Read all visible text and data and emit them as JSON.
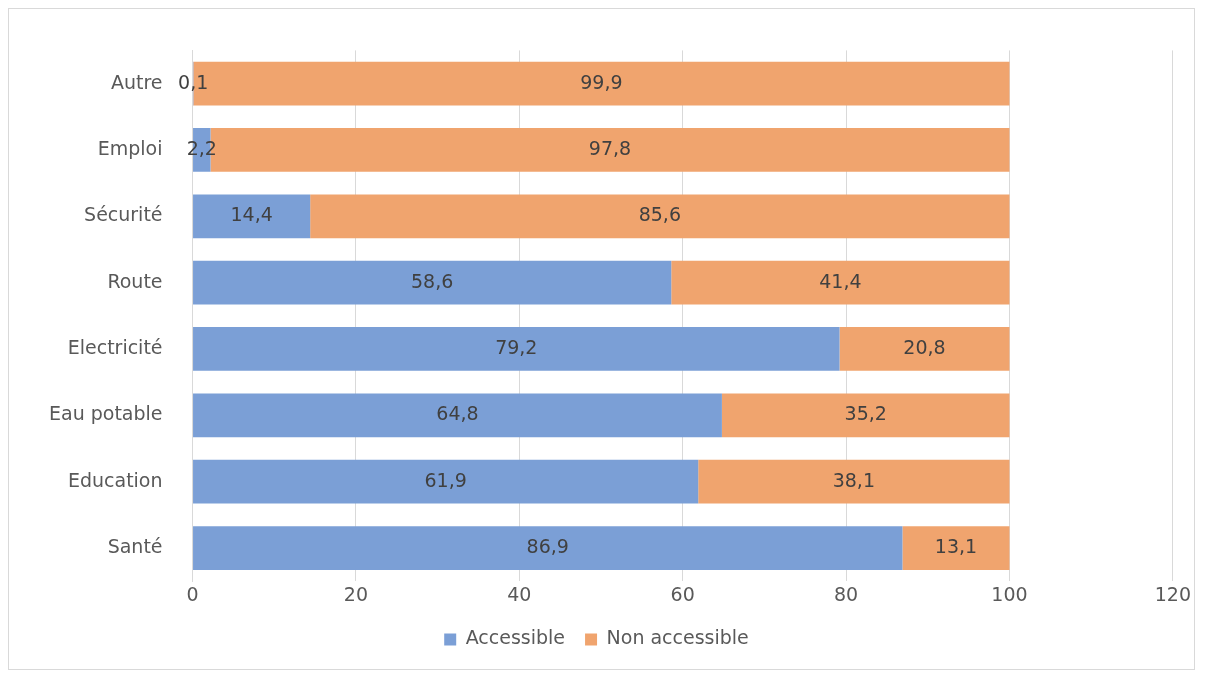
{
  "chart_data": {
    "type": "bar",
    "orientation": "horizontal",
    "stacked": true,
    "categories": [
      "Autre",
      "Emploi",
      "Sécurité",
      "Route",
      "Electricité",
      "Eau potable",
      "Education",
      "Santé"
    ],
    "series": [
      {
        "name": "Accessible",
        "color": "#7b9fd6",
        "values": [
          0.1,
          2.2,
          14.4,
          58.6,
          79.2,
          64.8,
          61.9,
          86.9
        ],
        "value_labels": [
          "0,1",
          "2,2",
          "14,4",
          "58,6",
          "79,2",
          "64,8",
          "61,9",
          "86,9"
        ]
      },
      {
        "name": "Non accessible",
        "color": "#f0a46e",
        "values": [
          99.9,
          97.8,
          85.6,
          41.4,
          20.8,
          35.2,
          38.1,
          13.1
        ],
        "value_labels": [
          "99,9",
          "97,8",
          "85,6",
          "41,4",
          "20,8",
          "35,2",
          "38,1",
          "13,1"
        ]
      }
    ],
    "xlim": [
      0,
      120
    ],
    "xticks": [
      0,
      20,
      40,
      60,
      80,
      100,
      120
    ],
    "grid": "x",
    "legend": "bottom"
  }
}
